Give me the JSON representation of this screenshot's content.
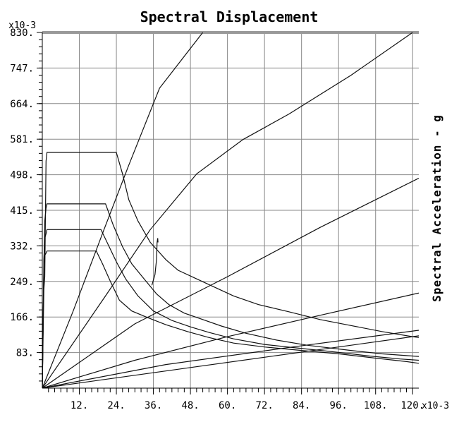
{
  "chart_data": {
    "type": "line",
    "title": "Spectral Displacement",
    "xlabel": "",
    "ylabel": "",
    "y2label": "Spectral Acceleration - g",
    "x_multiplier": "x10-3",
    "y_multiplier": "x10-3",
    "xlim": [
      0,
      122
    ],
    "ylim": [
      0,
      830
    ],
    "grid": true,
    "legend": "none",
    "x_ticks": [
      12,
      24,
      36,
      48,
      60,
      72,
      84,
      96,
      108,
      120
    ],
    "x_tick_labels": [
      "12.",
      "24.",
      "36.",
      "48.",
      "60.",
      "72.",
      "84.",
      "96.",
      "108.",
      "120."
    ],
    "y_ticks": [
      83,
      166,
      249,
      332,
      415,
      498,
      581,
      664,
      747,
      830
    ],
    "y_tick_labels": [
      "83.",
      "166.",
      "249.",
      "332.",
      "415.",
      "498.",
      "581.",
      "664.",
      "747.",
      "830."
    ],
    "series": [
      {
        "values": [
          [
            0,
            0
          ],
          [
            0.5,
            230
          ],
          [
            0.8,
            260
          ],
          [
            1.2,
            530
          ],
          [
            1.5,
            550
          ],
          [
            24,
            550
          ],
          [
            26,
            500
          ],
          [
            28,
            440
          ],
          [
            31,
            390
          ],
          [
            35,
            340
          ],
          [
            40,
            300
          ],
          [
            44,
            275
          ],
          [
            50,
            255
          ],
          [
            56,
            235
          ],
          [
            62,
            215
          ],
          [
            70,
            195
          ],
          [
            80,
            178
          ],
          [
            90,
            160
          ],
          [
            100,
            146
          ],
          [
            110,
            132
          ],
          [
            120,
            120
          ],
          [
            122,
            118
          ]
        ]
      },
      {
        "values": [
          [
            0,
            0
          ],
          [
            0.5,
            280
          ],
          [
            0.8,
            390
          ],
          [
            1.2,
            420
          ],
          [
            1.5,
            430
          ],
          [
            20.5,
            430
          ],
          [
            23,
            380
          ],
          [
            26,
            330
          ],
          [
            29,
            290
          ],
          [
            33,
            255
          ],
          [
            37,
            220
          ],
          [
            41,
            195
          ],
          [
            46,
            175
          ],
          [
            52,
            160
          ],
          [
            58,
            145
          ],
          [
            66,
            128
          ],
          [
            76,
            112
          ],
          [
            86,
            100
          ],
          [
            100,
            88
          ],
          [
            110,
            80
          ],
          [
            120,
            75
          ],
          [
            122,
            74
          ]
        ]
      },
      {
        "values": [
          [
            0,
            0
          ],
          [
            0.5,
            300
          ],
          [
            0.8,
            350
          ],
          [
            1.2,
            360
          ],
          [
            1.5,
            370
          ],
          [
            19,
            370
          ],
          [
            21,
            340
          ],
          [
            24,
            295
          ],
          [
            27,
            255
          ],
          [
            31,
            215
          ],
          [
            36,
            180
          ],
          [
            42,
            158
          ],
          [
            48,
            143
          ],
          [
            54,
            130
          ],
          [
            62,
            115
          ],
          [
            72,
            102
          ],
          [
            82,
            94
          ],
          [
            94,
            85
          ],
          [
            106,
            75
          ],
          [
            116,
            68
          ],
          [
            122,
            65
          ]
        ]
      },
      {
        "values": [
          [
            0,
            0
          ],
          [
            0.5,
            280
          ],
          [
            0.8,
            310
          ],
          [
            1.2,
            315
          ],
          [
            1.5,
            320
          ],
          [
            17.5,
            320
          ],
          [
            19.5,
            290
          ],
          [
            22,
            250
          ],
          [
            25,
            205
          ],
          [
            29,
            180
          ],
          [
            34,
            165
          ],
          [
            40,
            148
          ],
          [
            47,
            132
          ],
          [
            54,
            118
          ],
          [
            62,
            105
          ],
          [
            72,
            96
          ],
          [
            84,
            88
          ],
          [
            96,
            80
          ],
          [
            108,
            70
          ],
          [
            118,
            62
          ],
          [
            122,
            58
          ]
        ]
      },
      {
        "values": [
          [
            35.5,
            240
          ],
          [
            36.5,
            265
          ],
          [
            37,
            300
          ],
          [
            37.2,
            340
          ],
          [
            37.4,
            350
          ],
          [
            37.5,
            340
          ]
        ]
      },
      {
        "values": [
          [
            0,
            0
          ],
          [
            10,
            180
          ],
          [
            20,
            370
          ],
          [
            28,
            520
          ],
          [
            38,
            700
          ],
          [
            52,
            830
          ]
        ]
      },
      {
        "values": [
          [
            0,
            0
          ],
          [
            20,
            210
          ],
          [
            35,
            370
          ],
          [
            50,
            500
          ],
          [
            65,
            580
          ],
          [
            80,
            640
          ],
          [
            100,
            730
          ],
          [
            120,
            830
          ]
        ]
      },
      {
        "values": [
          [
            0,
            0
          ],
          [
            30,
            150
          ],
          [
            60,
            260
          ],
          [
            90,
            375
          ],
          [
            122,
            490
          ]
        ]
      },
      {
        "values": [
          [
            0,
            0
          ],
          [
            30,
            65
          ],
          [
            60,
            120
          ],
          [
            90,
            170
          ],
          [
            122,
            222
          ]
        ]
      },
      {
        "values": [
          [
            0,
            0
          ],
          [
            40,
            55
          ],
          [
            80,
            95
          ],
          [
            122,
            135
          ]
        ]
      },
      {
        "values": [
          [
            0,
            0
          ],
          [
            40,
            40
          ],
          [
            80,
            80
          ],
          [
            122,
            122
          ]
        ]
      }
    ]
  }
}
